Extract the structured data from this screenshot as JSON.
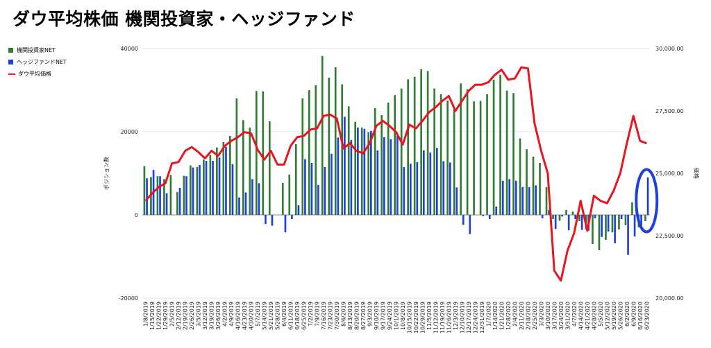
{
  "chart_data": {
    "type": "bar",
    "title": "ダウ平均株価 機関投資家・ヘッジファンド",
    "xlabel": "",
    "ylabel_left": "ポジション数",
    "ylabel_right": "価格",
    "ylim_left": [
      -20000,
      40000
    ],
    "yticks_left": [
      "40000",
      "20000",
      "0",
      "-20000"
    ],
    "ylim_right": [
      20000,
      30000
    ],
    "yticks_right": [
      "30,000.00",
      "27,500.00",
      "25,000.00",
      "22,500.00",
      "20,000.00"
    ],
    "legend_position": "left",
    "grid": true,
    "categories": [
      "1/8/2019",
      "1/15/2019",
      "1/22/2019",
      "1/29/2019",
      "2/5/2019",
      "2/12/2019",
      "2/19/2019",
      "2/26/2019",
      "3/5/2019",
      "3/12/2019",
      "3/19/2019",
      "3/26/2019",
      "4/2/2019",
      "4/9/2019",
      "4/16/2019",
      "4/23/2019",
      "4/30/2019",
      "5/7/2019",
      "5/14/2019",
      "5/21/2019",
      "5/28/2019",
      "6/4/2019",
      "6/11/2019",
      "6/18/2019",
      "6/25/2019",
      "7/2/2019",
      "7/9/2019",
      "7/16/2019",
      "7/23/2019",
      "7/30/2019",
      "8/6/2019",
      "8/13/2019",
      "8/20/2019",
      "8/27/2019",
      "9/3/2019",
      "9/10/2019",
      "9/17/2019",
      "9/24/2019",
      "10/1/2019",
      "10/8/2019",
      "10/15/2019",
      "10/22/2019",
      "10/29/2019",
      "11/5/2019",
      "11/12/2019",
      "11/19/2019",
      "11/26/2019",
      "12/3/2019",
      "12/10/2019",
      "12/17/2019",
      "12/24/2019",
      "12/31/2019",
      "1/7/2020",
      "1/14/2020",
      "1/21/2020",
      "1/28/2020",
      "2/4/2020",
      "2/11/2020",
      "2/18/2020",
      "2/25/2020",
      "3/3/2020",
      "3/10/2020",
      "3/17/2020",
      "3/24/2020",
      "3/31/2020",
      "4/7/2020",
      "4/14/2020",
      "4/21/2020",
      "4/28/2020",
      "5/5/2020",
      "5/12/2020",
      "5/19/2020",
      "5/26/2020",
      "6/2/2020",
      "6/9/2020",
      "6/16/2020",
      "6/23/2020"
    ],
    "series": [
      {
        "name": "機関投資家NET",
        "kind": "bar",
        "color": "#2e7d32",
        "values": [
          11700,
          9100,
          9300,
          8600,
          9600,
          5500,
          9400,
          11900,
          11500,
          13300,
          14400,
          16200,
          17500,
          19000,
          28000,
          22800,
          21000,
          29800,
          29700,
          22500,
          0,
          7700,
          9700,
          17000,
          28000,
          30000,
          31200,
          38200,
          33000,
          35500,
          31400,
          26100,
          22400,
          21000,
          19900,
          25700,
          24000,
          27000,
          28800,
          30400,
          32600,
          33200,
          35000,
          34600,
          30400,
          29000,
          27500,
          25500,
          31600,
          30200,
          27300,
          27400,
          29000,
          32500,
          33700,
          29900,
          29300,
          18400,
          15800,
          14000,
          12500,
          6700,
          -1000,
          -1400,
          1200,
          800,
          -1500,
          -3500,
          -7000,
          -8500,
          -6000,
          -4200,
          -3500,
          -2500,
          3000,
          -3000,
          -1500
        ]
      },
      {
        "name": "ヘッジファンドNET",
        "kind": "bar",
        "color": "#1f3fe0",
        "values": [
          8800,
          10800,
          9300,
          5200,
          0,
          6500,
          9300,
          11400,
          12000,
          13000,
          13000,
          13800,
          16400,
          12200,
          4200,
          5400,
          8600,
          7600,
          -2200,
          -2600,
          0,
          -4200,
          -1000,
          2300,
          13400,
          12500,
          7200,
          11500,
          14700,
          18600,
          23600,
          18000,
          21000,
          20700,
          20200,
          15500,
          18700,
          18200,
          19000,
          11500,
          12300,
          12700,
          15500,
          15000,
          16100,
          12900,
          12600,
          6600,
          -2400,
          -4600,
          0,
          -300,
          -1000,
          2000,
          8200,
          8600,
          8200,
          6700,
          6700,
          7100,
          -800,
          1200,
          -3400,
          -400,
          -3700,
          -1000,
          -3600,
          -3800,
          -800,
          -5300,
          -4000,
          -6800,
          -1000,
          -9600,
          -5200,
          -2800,
          9000
        ]
      },
      {
        "name": "ダウ平均価格",
        "kind": "line",
        "color": "#e8141e",
        "values": [
          23900,
          24200,
          24450,
          24600,
          25400,
          25450,
          25900,
          26050,
          25850,
          25600,
          25900,
          25700,
          26100,
          26300,
          26450,
          26650,
          26600,
          25950,
          25550,
          25900,
          25350,
          25350,
          26100,
          26450,
          26500,
          26750,
          26800,
          27300,
          27350,
          27200,
          26000,
          26200,
          25900,
          25800,
          26200,
          26900,
          27100,
          26900,
          26650,
          26150,
          26950,
          26800,
          27100,
          27450,
          27650,
          27900,
          28100,
          27500,
          27900,
          28300,
          28550,
          28550,
          28650,
          28950,
          29150,
          28750,
          28800,
          29250,
          29200,
          27000,
          25900,
          25000,
          21100,
          20700,
          21900,
          22600,
          23900,
          22700,
          24100,
          23900,
          23800,
          24300,
          25000,
          26200,
          27300,
          26300,
          26200
        ]
      }
    ]
  },
  "legend": [
    {
      "label": "機関投資家NET",
      "color": "#2e7d32",
      "type": "bar"
    },
    {
      "label": "ヘッジファンドNET",
      "color": "#1f3fe0",
      "type": "bar"
    },
    {
      "label": "ダウ平均価格",
      "color": "#e8141e",
      "type": "line"
    }
  ],
  "annotation": {
    "shape": "ellipse",
    "color": "#1f3fe0",
    "target_category": "6/23/2020"
  }
}
